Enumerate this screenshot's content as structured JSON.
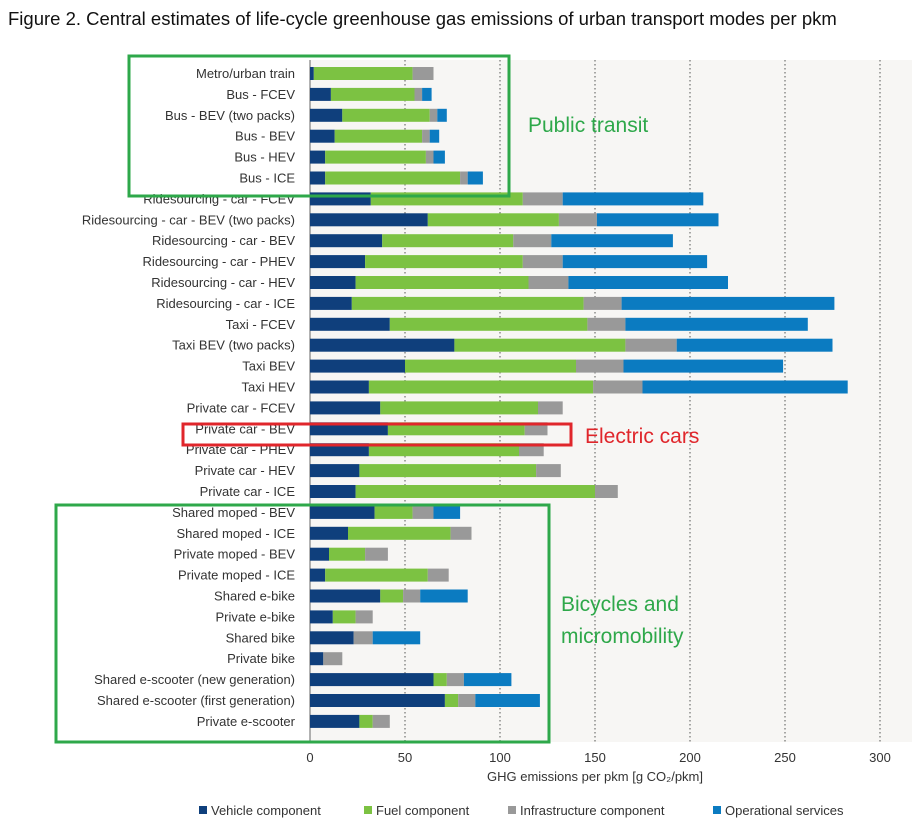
{
  "title": "Figure 2. Central estimates of life-cycle greenhouse gas emissions of urban transport modes per pkm",
  "chart_data": {
    "type": "bar",
    "orientation": "horizontal",
    "stacked": true,
    "xlabel": "GHG emissions per pkm [g CO₂/pkm]",
    "xlim": [
      0,
      300
    ],
    "xticks": [
      0,
      50,
      100,
      150,
      200,
      250,
      300
    ],
    "grid": "vertical dotted",
    "legend_position": "bottom",
    "categories": [
      "Metro/urban train",
      "Bus - FCEV",
      "Bus - BEV (two packs)",
      "Bus - BEV",
      "Bus - HEV",
      "Bus - ICE",
      "Ridesourcing - car - FCEV",
      "Ridesourcing - car - BEV (two packs)",
      "Ridesourcing - car - BEV",
      "Ridesourcing - car - PHEV",
      "Ridesourcing - car - HEV",
      "Ridesourcing - car - ICE",
      "Taxi - FCEV",
      "Taxi  BEV (two packs)",
      "Taxi  BEV",
      "Taxi  HEV",
      "Private car - FCEV",
      "Private car - BEV",
      "Private car - PHEV",
      "Private car - HEV",
      "Private car - ICE",
      "Shared moped - BEV",
      "Shared moped - ICE",
      "Private moped - BEV",
      "Private moped - ICE",
      "Shared e-bike",
      "Private e-bike",
      "Shared bike",
      "Private bike",
      "Shared e-scooter (new generation)",
      "Shared e-scooter (first generation)",
      "Private e-scooter"
    ],
    "series": [
      {
        "name": "Vehicle component",
        "color": "#0f3f7c",
        "values": [
          2,
          11,
          17,
          13,
          8,
          8,
          32,
          62,
          38,
          29,
          24,
          22,
          42,
          76,
          50,
          31,
          37,
          41,
          31,
          26,
          24,
          34,
          20,
          10,
          8,
          37,
          12,
          23,
          7,
          65,
          71,
          26
        ]
      },
      {
        "name": "Fuel component",
        "color": "#7cc242",
        "values": [
          52,
          44,
          46,
          46,
          53,
          71,
          80,
          69,
          69,
          83,
          91,
          122,
          104,
          90,
          90,
          118,
          83,
          72,
          79,
          93,
          126,
          20,
          54,
          19,
          54,
          12,
          12,
          0,
          0,
          7,
          7,
          7
        ]
      },
      {
        "name": "Infrastructure component",
        "color": "#999999",
        "values": [
          11,
          4,
          4,
          4,
          4,
          4,
          21,
          20,
          20,
          21,
          21,
          20,
          20,
          27,
          25,
          26,
          13,
          12,
          13,
          13,
          12,
          11,
          11,
          12,
          11,
          9,
          9,
          10,
          10,
          9,
          9,
          9
        ]
      },
      {
        "name": "Operational services",
        "color": "#0b7bc1",
        "values": [
          0,
          5,
          5,
          5,
          6,
          8,
          74,
          64,
          64,
          76,
          84,
          112,
          96,
          82,
          84,
          108,
          0,
          0,
          0,
          0,
          0,
          14,
          0,
          0,
          0,
          25,
          0,
          25,
          0,
          25,
          34,
          0
        ]
      }
    ],
    "annotations": [
      {
        "text": "Public transit",
        "color": "#2ea84a"
      },
      {
        "text": "Electric cars",
        "color": "#e0262b"
      },
      {
        "text": "Bicycles and",
        "color": "#2ea84a"
      },
      {
        "text": "micromobility",
        "color": "#2ea84a"
      }
    ]
  }
}
